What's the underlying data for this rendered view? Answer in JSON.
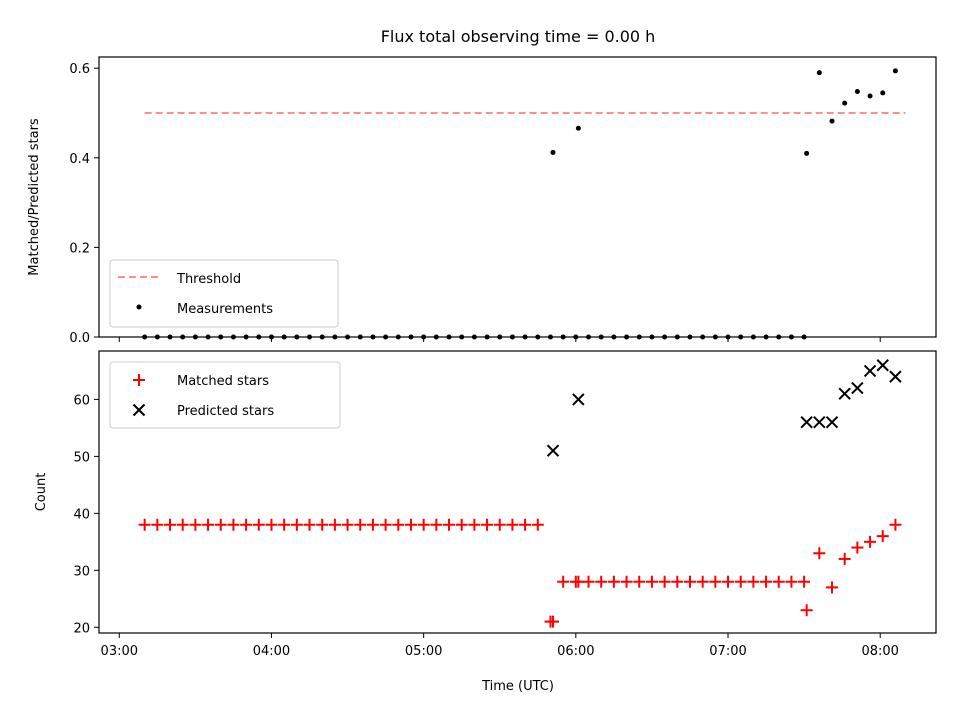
{
  "title": "Flux total observing time = 0.00 h",
  "chart_data": [
    {
      "type": "scatter",
      "ylabel": "Matched/Predicted stars",
      "xlabel": "",
      "ylim": [
        0,
        0.625
      ],
      "yticks": [
        "0.0",
        "0.2",
        "0.4",
        "0.6"
      ],
      "ytick_values": [
        0,
        0.2,
        0.4,
        0.6
      ],
      "legend_position": "lower-left",
      "threshold": {
        "name": "Threshold",
        "value": 0.5,
        "x_start": "03:10",
        "x_end": "08:10",
        "color": "#ff7f7f"
      },
      "measurements": {
        "name": "Measurements",
        "color": "#000000",
        "x": [
          "03:10",
          "03:15",
          "03:20",
          "03:25",
          "03:30",
          "03:35",
          "03:40",
          "03:45",
          "03:50",
          "03:55",
          "04:00",
          "04:05",
          "04:10",
          "04:15",
          "04:20",
          "04:25",
          "04:30",
          "04:35",
          "04:40",
          "04:45",
          "04:50",
          "04:55",
          "05:00",
          "05:05",
          "05:10",
          "05:15",
          "05:20",
          "05:25",
          "05:30",
          "05:35",
          "05:40",
          "05:45",
          "05:50",
          "05:51",
          "05:55",
          "06:00",
          "06:01",
          "06:05",
          "06:10",
          "06:15",
          "06:20",
          "06:25",
          "06:30",
          "06:35",
          "06:40",
          "06:45",
          "06:50",
          "06:55",
          "07:00",
          "07:05",
          "07:10",
          "07:15",
          "07:20",
          "07:25",
          "07:30",
          "07:31",
          "07:36",
          "07:41",
          "07:46",
          "07:51",
          "07:56",
          "08:01",
          "08:06"
        ],
        "y": [
          0,
          0,
          0,
          0,
          0,
          0,
          0,
          0,
          0,
          0,
          0,
          0,
          0,
          0,
          0,
          0,
          0,
          0,
          0,
          0,
          0,
          0,
          0,
          0,
          0,
          0,
          0,
          0,
          0,
          0,
          0,
          0,
          0,
          0.412,
          0,
          0,
          0.466,
          0,
          0,
          0,
          0,
          0,
          0,
          0,
          0,
          0,
          0,
          0,
          0,
          0,
          0,
          0,
          0,
          0,
          0,
          0.41,
          0.59,
          0.482,
          0.522,
          0.548,
          0.538,
          0.545,
          0.594
        ]
      }
    },
    {
      "type": "scatter",
      "ylabel": "Count",
      "xlabel": "Time (UTC)",
      "ylim": [
        19,
        68.5
      ],
      "yticks": [
        "20",
        "30",
        "40",
        "50",
        "60"
      ],
      "ytick_values": [
        20,
        30,
        40,
        50,
        60
      ],
      "xticks": [
        "03:00",
        "04:00",
        "05:00",
        "06:00",
        "07:00",
        "08:00"
      ],
      "xtick_values": [
        "03:00",
        "04:00",
        "05:00",
        "06:00",
        "07:00",
        "08:00"
      ],
      "xlim": [
        "02:52",
        "08:22"
      ],
      "legend_position": "upper-left",
      "matched": {
        "name": "Matched stars",
        "color": "#ff0000",
        "x": [
          "03:10",
          "03:15",
          "03:20",
          "03:25",
          "03:30",
          "03:35",
          "03:40",
          "03:45",
          "03:50",
          "03:55",
          "04:00",
          "04:05",
          "04:10",
          "04:15",
          "04:20",
          "04:25",
          "04:30",
          "04:35",
          "04:40",
          "04:45",
          "04:50",
          "04:55",
          "05:00",
          "05:05",
          "05:10",
          "05:15",
          "05:20",
          "05:25",
          "05:30",
          "05:35",
          "05:40",
          "05:45",
          "05:50",
          "05:51",
          "05:55",
          "06:00",
          "06:01",
          "06:05",
          "06:10",
          "06:15",
          "06:20",
          "06:25",
          "06:30",
          "06:35",
          "06:40",
          "06:45",
          "06:50",
          "06:55",
          "07:00",
          "07:05",
          "07:10",
          "07:15",
          "07:20",
          "07:25",
          "07:30",
          "07:31",
          "07:36",
          "07:41",
          "07:46",
          "07:51",
          "07:56",
          "08:01",
          "08:06"
        ],
        "y": [
          38,
          38,
          38,
          38,
          38,
          38,
          38,
          38,
          38,
          38,
          38,
          38,
          38,
          38,
          38,
          38,
          38,
          38,
          38,
          38,
          38,
          38,
          38,
          38,
          38,
          38,
          38,
          38,
          38,
          38,
          38,
          38,
          21,
          21,
          28,
          28,
          28,
          28,
          28,
          28,
          28,
          28,
          28,
          28,
          28,
          28,
          28,
          28,
          28,
          28,
          28,
          28,
          28,
          28,
          28,
          23,
          33,
          27,
          32,
          34,
          35,
          36,
          38
        ]
      },
      "predicted": {
        "name": "Predicted stars",
        "color": "#000000",
        "x": [
          "05:51",
          "06:01",
          "07:31",
          "07:36",
          "07:41",
          "07:46",
          "07:51",
          "07:56",
          "08:01",
          "08:06"
        ],
        "y": [
          51,
          60,
          56,
          56,
          56,
          61,
          62,
          65,
          66,
          64
        ]
      }
    }
  ]
}
